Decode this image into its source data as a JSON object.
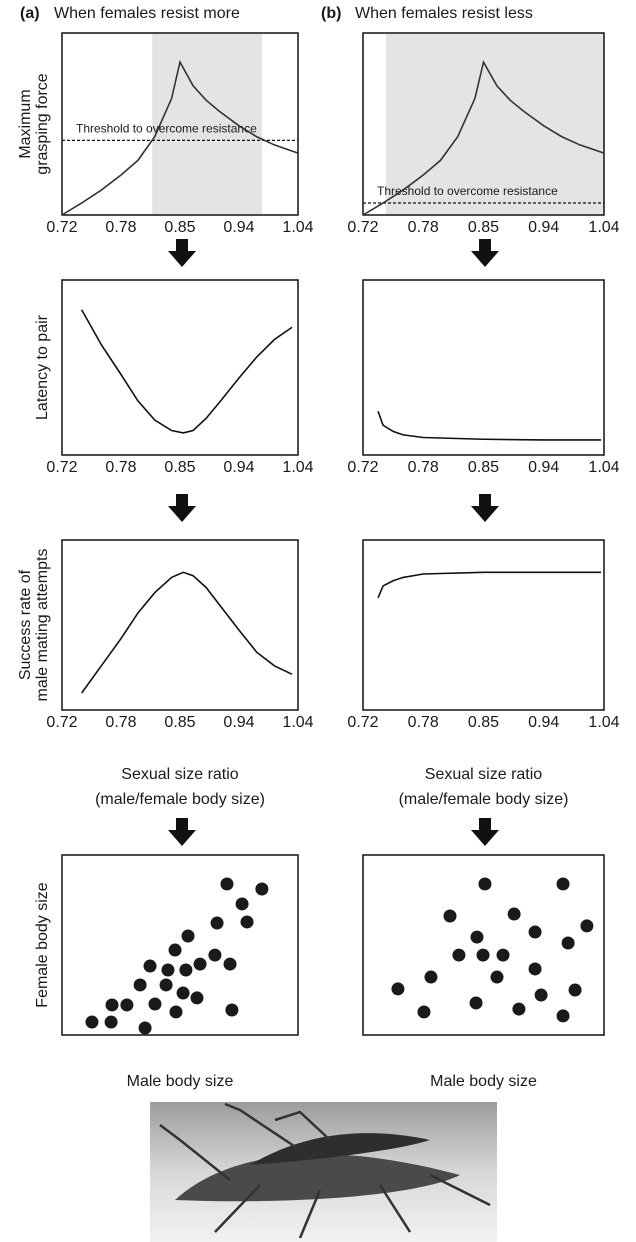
{
  "chart_data": [
    {
      "type": "line",
      "panel_label": "(a)",
      "title": "When females resist more",
      "ylabel": [
        "Maximum",
        "grasping force"
      ],
      "x": [
        0.72,
        0.74,
        0.76,
        0.78,
        0.8,
        0.82,
        0.84,
        0.85,
        0.87,
        0.89,
        0.91,
        0.94,
        0.97,
        1.0,
        1.04
      ],
      "values": [
        0,
        0.066,
        0.137,
        0.22,
        0.3,
        0.43,
        0.64,
        0.84,
        0.71,
        0.63,
        0.57,
        0.49,
        0.43,
        0.385,
        0.34
      ],
      "color": "#333333",
      "xlim": [
        0.72,
        1.04
      ],
      "xticks": [
        0.72,
        0.78,
        0.85,
        0.94,
        1.04
      ],
      "ylim": [
        0,
        1
      ],
      "threshold": {
        "value": 0.41,
        "label": "Threshold to overcome resistance"
      },
      "shaded_range": [
        0.817,
        0.979
      ],
      "shade_color": "#e4e4e6"
    },
    {
      "type": "line",
      "panel_label": "(b)",
      "title": "When females resist less",
      "x": [
        0.72,
        0.74,
        0.76,
        0.78,
        0.8,
        0.82,
        0.84,
        0.85,
        0.87,
        0.89,
        0.91,
        0.94,
        0.97,
        1.0,
        1.04
      ],
      "values": [
        0,
        0.066,
        0.137,
        0.22,
        0.3,
        0.43,
        0.64,
        0.84,
        0.71,
        0.63,
        0.57,
        0.49,
        0.43,
        0.385,
        0.34
      ],
      "color": "#333333",
      "xlim": [
        0.72,
        1.04
      ],
      "xticks": [
        0.72,
        0.78,
        0.85,
        0.94,
        1.04
      ],
      "ylim": [
        0,
        1
      ],
      "threshold": {
        "value": 0.066,
        "label": "Threshold to overcome resistance"
      },
      "shaded_range": [
        0.743,
        1.04
      ],
      "shade_color": "#e4e4e6"
    },
    {
      "type": "line",
      "ylabel": [
        "Latency to pair"
      ],
      "x": [
        0.74,
        0.76,
        0.78,
        0.8,
        0.82,
        0.84,
        0.855,
        0.87,
        0.89,
        0.91,
        0.94,
        0.97,
        1.0,
        1.03
      ],
      "values": [
        0.83,
        0.63,
        0.46,
        0.31,
        0.2,
        0.14,
        0.126,
        0.14,
        0.21,
        0.3,
        0.44,
        0.56,
        0.66,
        0.73
      ],
      "color": "#111111",
      "xlim": [
        0.72,
        1.04
      ],
      "xticks": [
        0.72,
        0.78,
        0.85,
        0.94,
        1.04
      ],
      "ylim": [
        0,
        1
      ]
    },
    {
      "type": "line",
      "x": [
        0.735,
        0.74,
        0.75,
        0.76,
        0.78,
        0.85,
        0.94,
        1.035
      ],
      "values": [
        0.25,
        0.17,
        0.135,
        0.115,
        0.1,
        0.09,
        0.086,
        0.086
      ],
      "color": "#111111",
      "xlim": [
        0.72,
        1.04
      ],
      "xticks": [
        0.72,
        0.78,
        0.85,
        0.94,
        1.04
      ],
      "ylim": [
        0,
        1
      ]
    },
    {
      "type": "line",
      "ylabel": [
        "Success rate of",
        "male mating attempts"
      ],
      "xlabel": [
        "Sexual size ratio",
        "(male/female body size)"
      ],
      "x": [
        0.74,
        0.76,
        0.78,
        0.8,
        0.82,
        0.84,
        0.855,
        0.87,
        0.89,
        0.91,
        0.94,
        0.97,
        1.0,
        1.03
      ],
      "values": [
        0.1,
        0.26,
        0.42,
        0.57,
        0.69,
        0.78,
        0.81,
        0.79,
        0.72,
        0.62,
        0.47,
        0.34,
        0.26,
        0.21
      ],
      "color": "#111111",
      "xlim": [
        0.72,
        1.04
      ],
      "xticks": [
        0.72,
        0.78,
        0.85,
        0.94,
        1.04
      ],
      "ylim": [
        0,
        1
      ]
    },
    {
      "type": "line",
      "xlabel": [
        "Sexual size ratio",
        "(male/female body size)"
      ],
      "x": [
        0.735,
        0.74,
        0.75,
        0.76,
        0.78,
        0.85,
        0.94,
        1.035
      ],
      "values": [
        0.66,
        0.73,
        0.76,
        0.78,
        0.8,
        0.81,
        0.81,
        0.81
      ],
      "color": "#111111",
      "xlim": [
        0.72,
        1.04
      ],
      "xticks": [
        0.72,
        0.78,
        0.85,
        0.94,
        1.04
      ],
      "ylim": [
        0,
        1
      ]
    },
    {
      "type": "scatter",
      "ylabel": [
        "Female body size"
      ],
      "xlabel": [
        "Male body size"
      ],
      "x": [
        12.7,
        20.8,
        21.2,
        27.5,
        33.1,
        35.2,
        37.3,
        39.4,
        44.1,
        44.9,
        47.9,
        48.3,
        51.3,
        52.5,
        53.4,
        57.2,
        58.5,
        64.8,
        65.7,
        69.9,
        71.2,
        72.0,
        76.3,
        78.4,
        84.7
      ],
      "values": [
        7.2,
        7.2,
        16.7,
        16.7,
        27.8,
        3.9,
        38.3,
        17.2,
        27.8,
        36.1,
        47.2,
        12.8,
        23.3,
        36.1,
        55.0,
        20.6,
        39.4,
        44.4,
        62.2,
        83.9,
        39.4,
        13.9,
        72.8,
        62.8,
        81.1
      ],
      "color": "#1a1a1a",
      "xlim": [
        0,
        100
      ],
      "ylim": [
        0,
        100
      ]
    },
    {
      "type": "scatter",
      "xlabel": [
        "Male body size"
      ],
      "x": [
        14.5,
        25.3,
        28.2,
        36.1,
        39.8,
        46.9,
        47.3,
        49.8,
        50.6,
        55.6,
        58.1,
        62.7,
        64.7,
        71.4,
        71.4,
        73.9,
        83.0,
        83.0,
        85.1,
        88.0,
        92.9
      ],
      "values": [
        25.6,
        12.8,
        32.2,
        66.1,
        44.4,
        17.8,
        54.4,
        44.4,
        83.9,
        32.2,
        44.4,
        67.2,
        14.4,
        36.7,
        57.2,
        22.2,
        83.9,
        10.6,
        51.1,
        25.0,
        60.6
      ],
      "color": "#1a1a1a",
      "xlim": [
        0,
        100
      ],
      "ylim": [
        0,
        100
      ]
    }
  ]
}
